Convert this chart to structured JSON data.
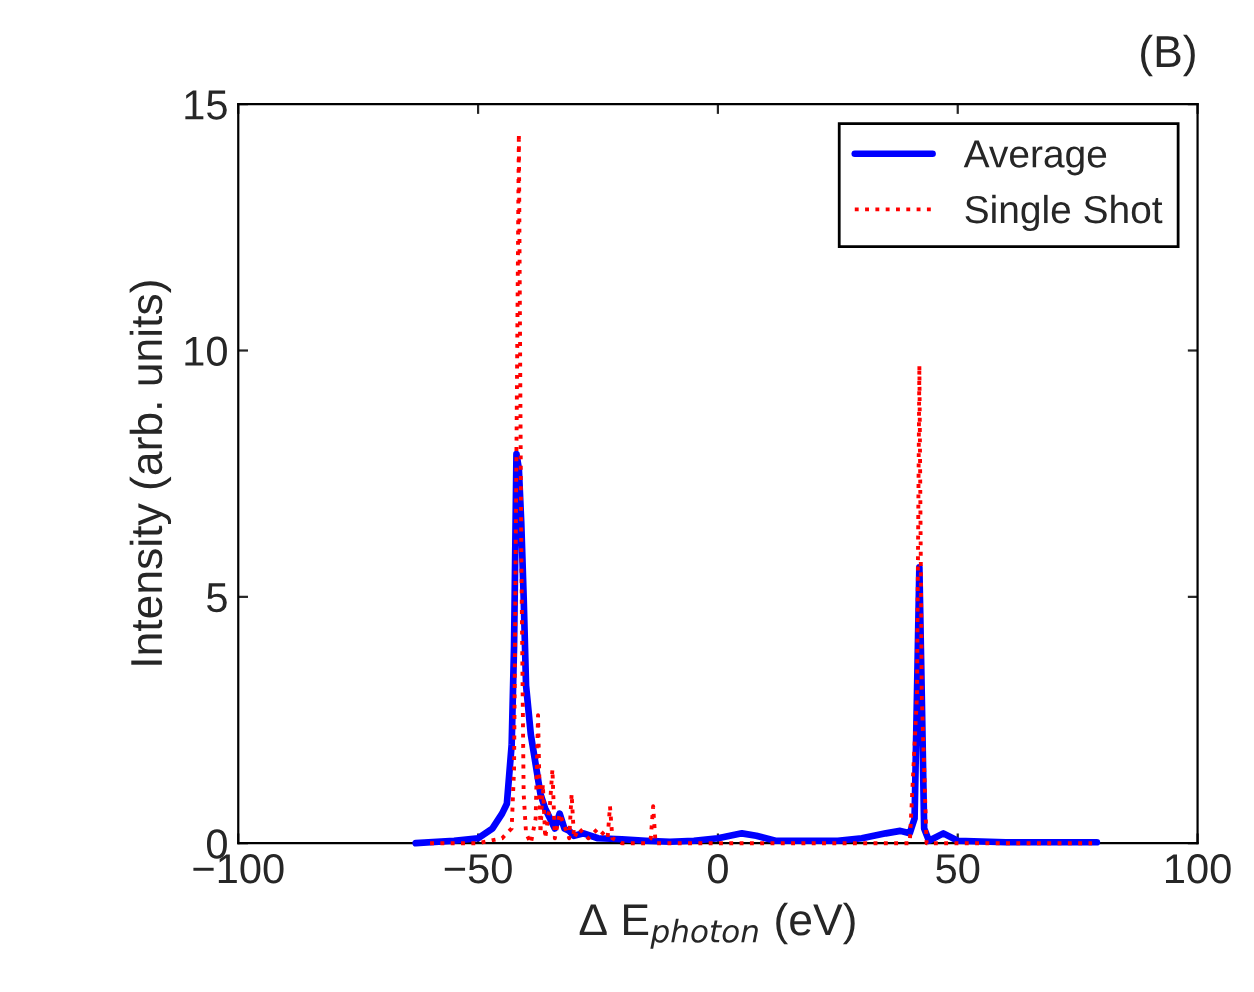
{
  "chart_data": {
    "type": "line",
    "title": "(B)",
    "xlabel": "Δ E$_{photon}$ (eV)",
    "ylabel": "Intensity (arb. units)",
    "xlim": [
      -100,
      100
    ],
    "xticks": [
      {
        "value": -100,
        "label": "−100"
      },
      {
        "value": -50,
        "label": "−50"
      },
      0,
      50,
      100
    ],
    "ylim": [
      0,
      15
    ],
    "yticks": [
      0,
      5,
      10,
      15
    ],
    "grid": false,
    "legend": "top right",
    "series": [
      {
        "name": "Average",
        "color": "#0000ff",
        "line_style": "solid",
        "x": [
          -63,
          -55,
          -50,
          -47,
          -45,
          -44,
          -43,
          -42.5,
          -42,
          -41.5,
          -41,
          -40.5,
          -40,
          -39,
          -38,
          -37,
          -36,
          -35,
          -34,
          -33,
          -32,
          -31,
          -30,
          -28,
          -25,
          -20,
          -15,
          -10,
          -5,
          0,
          5,
          8,
          12,
          20,
          25,
          30,
          35,
          38,
          40,
          41,
          41.5,
          42,
          42.5,
          43,
          44,
          47,
          50,
          60,
          70,
          79
        ],
        "values": [
          0,
          0.05,
          0.1,
          0.3,
          0.6,
          0.8,
          2,
          4,
          7.9,
          7.6,
          6.5,
          5,
          3.2,
          2.2,
          1.6,
          1,
          0.7,
          0.5,
          0.3,
          0.6,
          0.3,
          0.25,
          0.15,
          0.2,
          0.1,
          0.08,
          0.05,
          0.03,
          0.05,
          0.1,
          0.2,
          0.15,
          0.05,
          0.05,
          0.05,
          0.1,
          0.2,
          0.25,
          0.2,
          0.5,
          3,
          5.6,
          3,
          0.3,
          0.05,
          0.2,
          0.05,
          0.02,
          0.02,
          0.02
        ]
      },
      {
        "name": "Single Shot",
        "color": "#ff0000",
        "line_style": "dotted",
        "x": [
          -60,
          -50,
          -45,
          -43,
          -42.5,
          -42,
          -41.5,
          -41,
          -40.5,
          -40,
          -39,
          -38,
          -37.5,
          -37,
          -36.5,
          -36,
          -35,
          -34.5,
          -34,
          -33,
          -31,
          -30.5,
          -30,
          -29,
          -27,
          -25,
          -23,
          -22.5,
          -22,
          -20,
          -15,
          -14,
          -13.5,
          -13,
          -10,
          0,
          10,
          20,
          30,
          40,
          41.5,
          42,
          42.5,
          43.5,
          50,
          60,
          70,
          78
        ],
        "values": [
          0,
          0,
          0.1,
          0.3,
          1.5,
          8,
          14.4,
          6,
          1,
          0.2,
          0,
          0.5,
          2.6,
          0.2,
          1.2,
          0.1,
          0.8,
          1.5,
          0.1,
          0.6,
          0.1,
          1,
          0.1,
          0.3,
          0.1,
          0.3,
          0.1,
          0.75,
          0.1,
          0,
          0,
          0.1,
          0.75,
          0,
          0,
          0,
          0,
          0,
          0,
          0,
          3,
          9.7,
          3,
          0,
          0,
          0,
          0,
          0
        ]
      }
    ]
  }
}
